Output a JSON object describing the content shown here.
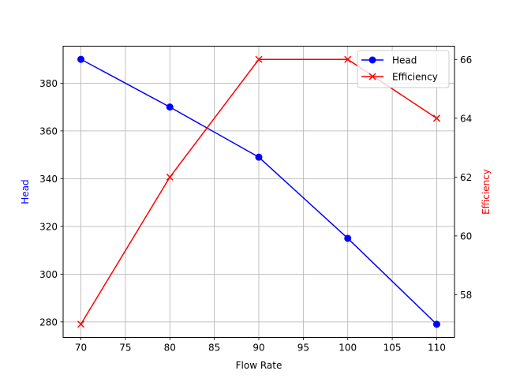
{
  "chart_data": {
    "type": "line",
    "title": "",
    "xlabel": "Flow Rate",
    "x": [
      70,
      80,
      90,
      100,
      110
    ],
    "xticks": [
      70,
      75,
      80,
      85,
      90,
      95,
      100,
      105,
      110
    ],
    "xlim": [
      68,
      112
    ],
    "grid": true,
    "legend_position": "upper right",
    "series": [
      {
        "name": "Head",
        "axis": "left",
        "color": "#0000ff",
        "marker": "circle",
        "values": [
          390,
          370,
          349,
          315,
          279
        ]
      },
      {
        "name": "Efficiency",
        "axis": "right",
        "color": "#ff0000",
        "marker": "x",
        "values": [
          57,
          62,
          66,
          66,
          64
        ]
      }
    ],
    "left_axis": {
      "label": "Head",
      "color": "#0000ff",
      "ticks": [
        280,
        300,
        320,
        340,
        360,
        380
      ],
      "ylim": [
        273.5,
        395.5
      ]
    },
    "right_axis": {
      "label": "Efficiency",
      "color": "#ff0000",
      "ticks": [
        58,
        60,
        62,
        64,
        66
      ],
      "ylim": [
        56.55,
        66.45
      ]
    }
  }
}
